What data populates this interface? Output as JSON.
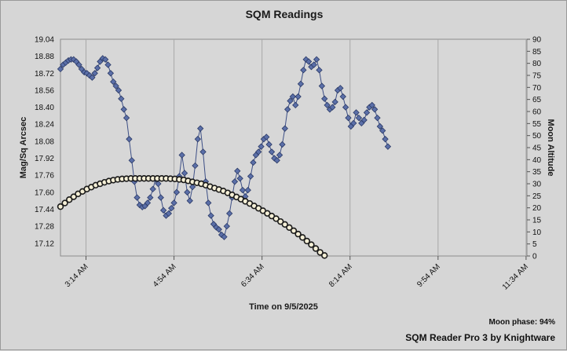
{
  "chart_data": {
    "type": "scatter",
    "title": "SQM Readings",
    "xlabel": "Time on 9/5/2025",
    "ylabel": "Mag/Sq Arcsec",
    "y2label": "Moon Altitude",
    "x_unit": "minutes after midnight",
    "x_tick_labels": [
      "3:14 AM",
      "4:54 AM",
      "6:34 AM",
      "8:14 AM",
      "9:54 AM",
      "11:34 AM"
    ],
    "ylim": [
      17.0,
      19.04
    ],
    "yticks": [
      "19.04",
      "18.88",
      "18.72",
      "18.56",
      "18.40",
      "18.24",
      "18.08",
      "17.92",
      "17.76",
      "17.60",
      "17.44",
      "17.28",
      "17.12"
    ],
    "y2lim": [
      0,
      90
    ],
    "y2ticks": [
      "90",
      "85",
      "80",
      "75",
      "70",
      "65",
      "60",
      "55",
      "50",
      "45",
      "40",
      "35",
      "30",
      "25",
      "20",
      "15",
      "10",
      "5",
      "0"
    ],
    "grid": true,
    "series": [
      {
        "axis": "left",
        "marker": "diamond",
        "color": "#5b6fa8",
        "points": [
          [
            165,
            18.76
          ],
          [
            168,
            18.8
          ],
          [
            171,
            18.82
          ],
          [
            174,
            18.84
          ],
          [
            177,
            18.85
          ],
          [
            180,
            18.85
          ],
          [
            183,
            18.83
          ],
          [
            186,
            18.8
          ],
          [
            189,
            18.76
          ],
          [
            192,
            18.73
          ],
          [
            195,
            18.72
          ],
          [
            198,
            18.7
          ],
          [
            201,
            18.68
          ],
          [
            204,
            18.72
          ],
          [
            207,
            18.77
          ],
          [
            210,
            18.83
          ],
          [
            213,
            18.86
          ],
          [
            216,
            18.85
          ],
          [
            219,
            18.8
          ],
          [
            222,
            18.72
          ],
          [
            225,
            18.64
          ],
          [
            228,
            18.6
          ],
          [
            231,
            18.56
          ],
          [
            234,
            18.48
          ],
          [
            237,
            18.38
          ],
          [
            240,
            18.3
          ],
          [
            243,
            18.1
          ],
          [
            246,
            17.9
          ],
          [
            249,
            17.7
          ],
          [
            252,
            17.55
          ],
          [
            255,
            17.48
          ],
          [
            258,
            17.46
          ],
          [
            261,
            17.47
          ],
          [
            264,
            17.5
          ],
          [
            267,
            17.55
          ],
          [
            270,
            17.63
          ],
          [
            273,
            17.72
          ],
          [
            276,
            17.68
          ],
          [
            279,
            17.55
          ],
          [
            282,
            17.43
          ],
          [
            285,
            17.38
          ],
          [
            288,
            17.4
          ],
          [
            291,
            17.45
          ],
          [
            294,
            17.5
          ],
          [
            297,
            17.6
          ],
          [
            300,
            17.75
          ],
          [
            303,
            17.95
          ],
          [
            306,
            17.78
          ],
          [
            309,
            17.6
          ],
          [
            312,
            17.52
          ],
          [
            315,
            17.65
          ],
          [
            318,
            17.85
          ],
          [
            321,
            18.1
          ],
          [
            324,
            18.2
          ],
          [
            327,
            17.98
          ],
          [
            330,
            17.7
          ],
          [
            333,
            17.5
          ],
          [
            336,
            17.38
          ],
          [
            339,
            17.3
          ],
          [
            342,
            17.27
          ],
          [
            345,
            17.25
          ],
          [
            348,
            17.2
          ],
          [
            351,
            17.18
          ],
          [
            354,
            17.28
          ],
          [
            357,
            17.4
          ],
          [
            360,
            17.55
          ],
          [
            363,
            17.7
          ],
          [
            366,
            17.8
          ],
          [
            369,
            17.73
          ],
          [
            372,
            17.62
          ],
          [
            375,
            17.56
          ],
          [
            378,
            17.62
          ],
          [
            381,
            17.75
          ],
          [
            384,
            17.88
          ],
          [
            387,
            17.95
          ],
          [
            390,
            17.98
          ],
          [
            393,
            18.03
          ],
          [
            396,
            18.1
          ],
          [
            399,
            18.12
          ],
          [
            402,
            18.05
          ],
          [
            405,
            17.98
          ],
          [
            408,
            17.92
          ],
          [
            411,
            17.9
          ],
          [
            414,
            17.95
          ],
          [
            417,
            18.05
          ],
          [
            420,
            18.2
          ],
          [
            423,
            18.38
          ],
          [
            426,
            18.46
          ],
          [
            429,
            18.5
          ],
          [
            432,
            18.42
          ],
          [
            435,
            18.5
          ],
          [
            438,
            18.62
          ],
          [
            441,
            18.75
          ],
          [
            444,
            18.85
          ],
          [
            447,
            18.83
          ],
          [
            450,
            18.78
          ],
          [
            453,
            18.8
          ],
          [
            456,
            18.85
          ],
          [
            459,
            18.75
          ],
          [
            462,
            18.6
          ],
          [
            465,
            18.48
          ],
          [
            468,
            18.42
          ],
          [
            471,
            18.38
          ],
          [
            474,
            18.4
          ],
          [
            477,
            18.45
          ],
          [
            480,
            18.56
          ],
          [
            483,
            18.58
          ],
          [
            486,
            18.5
          ],
          [
            489,
            18.4
          ],
          [
            492,
            18.3
          ],
          [
            495,
            18.22
          ],
          [
            498,
            18.25
          ],
          [
            501,
            18.35
          ],
          [
            504,
            18.3
          ],
          [
            507,
            18.25
          ],
          [
            510,
            18.28
          ],
          [
            513,
            18.35
          ],
          [
            516,
            18.4
          ],
          [
            519,
            18.42
          ],
          [
            522,
            18.38
          ],
          [
            525,
            18.3
          ],
          [
            528,
            18.22
          ],
          [
            531,
            18.18
          ],
          [
            534,
            18.1
          ],
          [
            537,
            18.03
          ]
        ]
      },
      {
        "axis": "right",
        "marker": "circle",
        "color": "#f5efd6",
        "edge": "#1a1a1a",
        "points": [
          [
            165,
            20.5
          ],
          [
            170,
            22.0
          ],
          [
            175,
            23.4
          ],
          [
            180,
            24.6
          ],
          [
            185,
            25.8
          ],
          [
            190,
            26.8
          ],
          [
            195,
            27.8
          ],
          [
            200,
            28.6
          ],
          [
            205,
            29.4
          ],
          [
            210,
            30.0
          ],
          [
            215,
            30.6
          ],
          [
            220,
            31.1
          ],
          [
            225,
            31.5
          ],
          [
            230,
            31.8
          ],
          [
            235,
            32.0
          ],
          [
            240,
            32.1
          ],
          [
            245,
            32.2
          ],
          [
            250,
            32.2
          ],
          [
            255,
            32.2
          ],
          [
            260,
            32.2
          ],
          [
            265,
            32.2
          ],
          [
            270,
            32.2
          ],
          [
            275,
            32.2
          ],
          [
            280,
            32.2
          ],
          [
            285,
            32.2
          ],
          [
            290,
            32.1
          ],
          [
            295,
            32.0
          ],
          [
            300,
            31.8
          ],
          [
            305,
            31.6
          ],
          [
            310,
            31.2
          ],
          [
            315,
            30.8
          ],
          [
            320,
            30.4
          ],
          [
            325,
            30.0
          ],
          [
            330,
            29.4
          ],
          [
            335,
            28.8
          ],
          [
            340,
            28.2
          ],
          [
            345,
            27.6
          ],
          [
            350,
            27.0
          ],
          [
            355,
            26.2
          ],
          [
            360,
            25.4
          ],
          [
            365,
            24.5
          ],
          [
            370,
            23.6
          ],
          [
            375,
            22.7
          ],
          [
            380,
            21.8
          ],
          [
            385,
            20.8
          ],
          [
            390,
            19.8
          ],
          [
            395,
            18.8
          ],
          [
            400,
            17.7
          ],
          [
            405,
            16.6
          ],
          [
            410,
            15.5
          ],
          [
            415,
            14.3
          ],
          [
            420,
            13.1
          ],
          [
            425,
            11.8
          ],
          [
            430,
            10.5
          ],
          [
            435,
            9.1
          ],
          [
            440,
            7.7
          ],
          [
            445,
            6.2
          ],
          [
            450,
            4.7
          ],
          [
            455,
            3.1
          ],
          [
            460,
            1.5
          ],
          [
            465,
            0.2
          ]
        ]
      }
    ]
  },
  "footer": {
    "moon_phase": "Moon phase: 94%",
    "credit": "SQM Reader Pro 3 by Knightware"
  }
}
